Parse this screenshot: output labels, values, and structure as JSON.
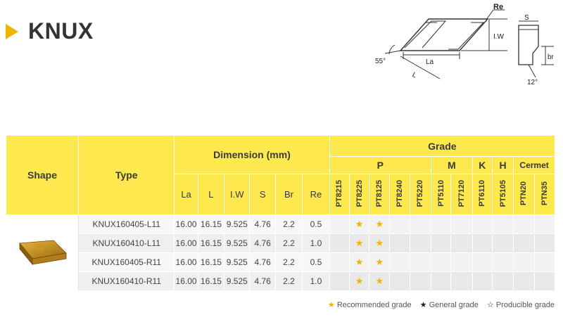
{
  "title": "KNUX",
  "drawing": {
    "re_label": "Re",
    "iw_label": "I.W",
    "angle55": "55°",
    "la_label": "La",
    "l_label": "L",
    "s_label": "S",
    "br_label": "br",
    "angle12": "12°"
  },
  "table": {
    "shape_header": "Shape",
    "type_header": "Type",
    "dimension_header": "Dimension (mm)",
    "grade_header": "Grade",
    "dim_cols": [
      "La",
      "L",
      "I.W",
      "S",
      "Br",
      "Re"
    ],
    "grade_groups": [
      "P",
      "M",
      "K",
      "H",
      "Cermet"
    ],
    "grade_cols": [
      "PT8215",
      "PT8225",
      "PT8125",
      "PT8240",
      "PT5220",
      "PT5110",
      "PT7120",
      "PT6110",
      "PT5105",
      "PTN20",
      "PTN35"
    ],
    "rows": [
      {
        "type": "KNUX160405-L11",
        "dims": [
          "16.00",
          "16.15",
          "9.525",
          "4.76",
          "2.2",
          "0.5"
        ],
        "grades": [
          "",
          "★",
          "★",
          "",
          "",
          "",
          "",
          "",
          "",
          "",
          ""
        ]
      },
      {
        "type": "KNUX160410-L11",
        "dims": [
          "16.00",
          "16.15",
          "9.525",
          "4.76",
          "2.2",
          "1.0"
        ],
        "grades": [
          "",
          "★",
          "★",
          "",
          "",
          "",
          "",
          "",
          "",
          "",
          ""
        ]
      },
      {
        "type": "KNUX160405-R11",
        "dims": [
          "16.00",
          "16.15",
          "9.525",
          "4.76",
          "2.2",
          "0.5"
        ],
        "grades": [
          "",
          "★",
          "★",
          "",
          "",
          "",
          "",
          "",
          "",
          "",
          ""
        ]
      },
      {
        "type": "KNUX160410-R11",
        "dims": [
          "16.00",
          "16.15",
          "9.525",
          "4.76",
          "2.2",
          "1.0"
        ],
        "grades": [
          "",
          "★",
          "★",
          "",
          "",
          "",
          "",
          "",
          "",
          "",
          ""
        ]
      }
    ]
  },
  "legend": {
    "recommended": "Recommended grade",
    "general": "General grade",
    "producible": "Producible grade"
  },
  "colors": {
    "accent": "#f0b400",
    "header_bg": "#fde84e"
  }
}
